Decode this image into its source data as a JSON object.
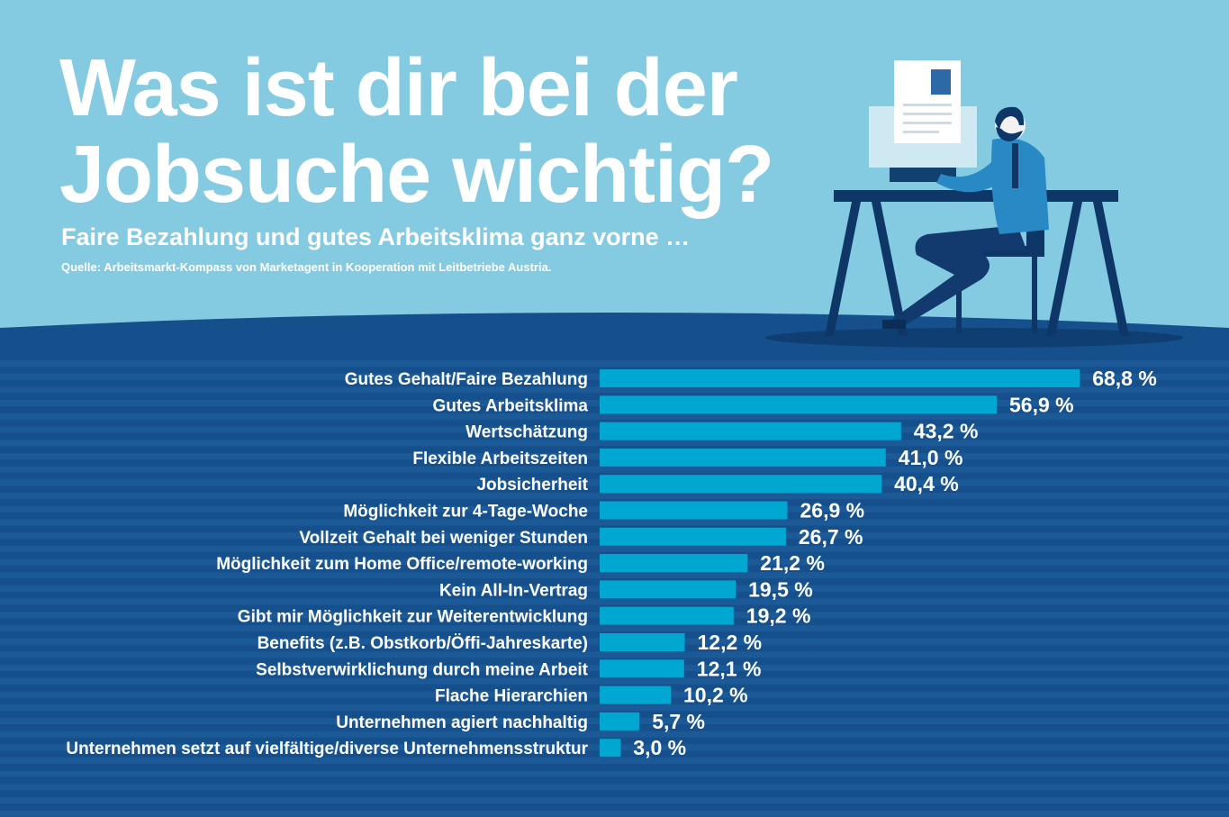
{
  "header": {
    "title": "Was ist dir bei der Jobsuche wichtig?",
    "subtitle": "Faire Bezahlung und gutes Arbeitsklima ganz vorne …",
    "source": "Quelle: Arbeitsmarkt-Kompass von Marketagent in Kooperation mit Leitbetriebe Austria."
  },
  "colors": {
    "sky": "#84cbe2",
    "ground": "#154f8c",
    "stripe": "#1b5a97",
    "bar": "#00a7d0",
    "text": "#ffffff"
  },
  "illustration": {
    "icon": "person-at-desk-illustration"
  },
  "chart_data": {
    "type": "bar",
    "orientation": "horizontal",
    "categories": [
      "Gutes Gehalt/Faire Bezahlung",
      "Gutes Arbeitsklima",
      "Wertschätzung",
      "Flexible Arbeitszeiten",
      "Jobsicherheit",
      "Möglichkeit zur 4-Tage-Woche",
      "Vollzeit Gehalt bei weniger Stunden",
      "Möglichkeit zum Home Office/remote-working",
      "Kein All-In-Vertrag",
      "Gibt mir Möglichkeit zur Weiterentwicklung",
      "Benefits (z.B. Obstkorb/Öffi-Jahreskarte)",
      "Selbstverwirklichung durch meine Arbeit",
      "Flache Hierarchien",
      "Unternehmen agiert nachhaltig",
      "Unternehmen setzt auf vielfältige/diverse Unternehmensstruktur"
    ],
    "values": [
      68.8,
      56.9,
      43.2,
      41.0,
      40.4,
      26.9,
      26.7,
      21.2,
      19.5,
      19.2,
      12.2,
      12.1,
      10.2,
      5.7,
      3.0
    ],
    "value_labels": [
      "68,8 %",
      "56,9 %",
      "43,2 %",
      "41,0 %",
      "40,4 %",
      "26,9 %",
      "26,7 %",
      "21,2 %",
      "19,5 %",
      "19,2 %",
      "12,2 %",
      "12,1 %",
      "10,2 %",
      "5,7 %",
      "3,0 %"
    ],
    "unit": "%",
    "xlim": [
      0,
      100
    ],
    "grid": false,
    "legend": "none"
  }
}
